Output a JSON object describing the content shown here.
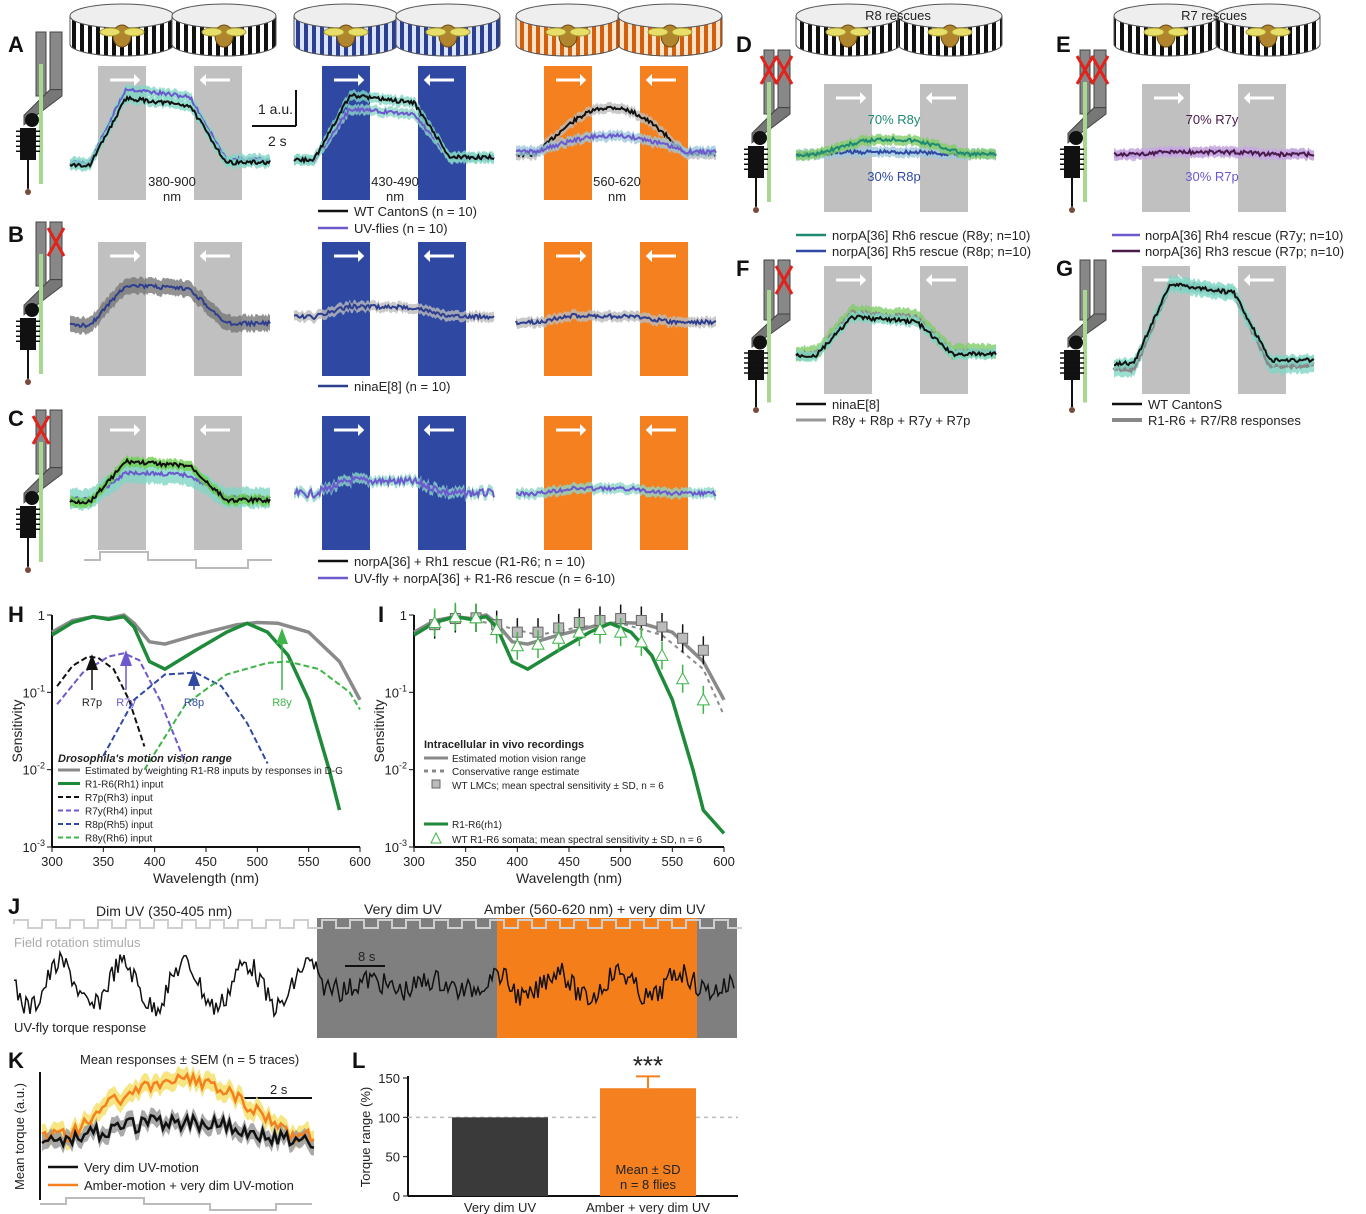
{
  "colors": {
    "grey_band": "#c0c0c0",
    "blue_band": "#2f49a3",
    "orange_band": "#f4801f",
    "wt_black": "#111111",
    "uv_purple": "#6a5acd",
    "rh_green": "#1e8a3a",
    "sem_teal": "#7fd6c4",
    "gray_bg_J": "#7f7f7f",
    "amber_J": "#f47e1a",
    "bar_dark": "#3a3a3a",
    "bar_orange": "#f4801f"
  },
  "icons": [
    "drum-arena-icon",
    "fly-photoreceptor-schematic-icon",
    "right-arrow-icon",
    "left-arrow-icon",
    "red-cross-icon"
  ],
  "panelA": {
    "letter": "A",
    "scale_y": "1 a.u.",
    "scale_x": "2 s",
    "band_labels": [
      "380-900\nnm",
      "430-490\nnm",
      "560-620\nnm"
    ],
    "legend": [
      "WT CantonS (n = 10)",
      "UV-flies (n = 10)"
    ]
  },
  "panelB": {
    "letter": "B",
    "legend": [
      "ninaE[8] (n = 10)"
    ]
  },
  "panelC": {
    "letter": "C",
    "legend": [
      "norpA[36] + Rh1 rescue (R1-R6; n = 10)",
      "UV-fly + norpA[36] + R1-R6 rescue (n = 6-10)"
    ]
  },
  "panelD": {
    "letter": "D",
    "title": "R8 rescues",
    "label_top": "70% R8y",
    "label_bottom": "30% R8p",
    "legend": [
      "norpA[36] Rh6 rescue (R8y; n=10)",
      "norpA[36] Rh5 rescue (R8p; n=10)"
    ]
  },
  "panelE": {
    "letter": "E",
    "title": "R7 rescues",
    "label_top": "70% R7y",
    "label_bottom": "30% R7p",
    "legend": [
      "norpA[36] Rh4 rescue (R7y; n=10)",
      "norpA[36] Rh3 rescue (R7p; n=10)"
    ]
  },
  "panelF": {
    "letter": "F",
    "legend": [
      "ninaE[8]",
      "R8y + R8p + R7y + R7p"
    ]
  },
  "panelG": {
    "letter": "G",
    "legend": [
      "WT CantonS",
      "R1-R6 + R7/R8 responses"
    ]
  },
  "chart_data": [
    {
      "panel": "H",
      "type": "line",
      "xlabel": "Wavelength (nm)",
      "ylabel": "Sensitivity",
      "xlim": [
        300,
        600
      ],
      "ylim": [
        0.001,
        1
      ],
      "yscale": "log",
      "x_ticks": [
        "300",
        "350",
        "400",
        "450",
        "500",
        "550",
        "600"
      ],
      "y_ticks": [
        "1",
        "10^-1",
        "10^-2",
        "10^-3"
      ],
      "peak_labels": [
        "R7p",
        "R7y",
        "R8p",
        "R8y"
      ],
      "legend_title": "Drosophila's motion vision range",
      "series": [
        {
          "name": "Estimated by weighting R1-R8 inputs by responses in D-G",
          "color": "#8a8a8a",
          "x": [
            300,
            320,
            340,
            355,
            370,
            380,
            395,
            410,
            440,
            480,
            500,
            520,
            550,
            580,
            600
          ],
          "y": [
            0.6,
            0.85,
            0.95,
            0.9,
            1.0,
            0.78,
            0.45,
            0.42,
            0.55,
            0.75,
            0.8,
            0.78,
            0.6,
            0.25,
            0.08
          ]
        },
        {
          "name": "R1-R6(Rh1) input",
          "color": "#1e8a3a",
          "x": [
            300,
            320,
            340,
            355,
            370,
            380,
            395,
            410,
            440,
            470,
            490,
            510,
            530,
            550,
            570,
            580
          ],
          "y": [
            0.55,
            0.8,
            0.95,
            0.88,
            0.95,
            0.7,
            0.25,
            0.2,
            0.35,
            0.6,
            0.78,
            0.6,
            0.3,
            0.08,
            0.01,
            0.003
          ]
        },
        {
          "name": "R7p(Rh3) input",
          "color": "#111111",
          "x": [
            305,
            320,
            335,
            345,
            360,
            375,
            390
          ],
          "y": [
            0.12,
            0.22,
            0.29,
            0.28,
            0.2,
            0.08,
            0.02
          ]
        },
        {
          "name": "R7y(Rh4) input",
          "color": "#6a5acd",
          "x": [
            305,
            330,
            355,
            370,
            385,
            405,
            430
          ],
          "y": [
            0.07,
            0.18,
            0.29,
            0.32,
            0.26,
            0.08,
            0.012
          ]
        },
        {
          "name": "R8p(Rh5) input",
          "color": "#2f49a3",
          "x": [
            350,
            380,
            410,
            440,
            465,
            490,
            510
          ],
          "y": [
            0.015,
            0.08,
            0.17,
            0.18,
            0.12,
            0.04,
            0.012
          ]
        },
        {
          "name": "R8y(Rh6) input",
          "color": "#3fb549",
          "x": [
            390,
            430,
            470,
            510,
            530,
            560,
            590,
            600
          ],
          "y": [
            0.01,
            0.07,
            0.17,
            0.24,
            0.25,
            0.2,
            0.1,
            0.06
          ]
        }
      ]
    },
    {
      "panel": "I",
      "type": "line",
      "xlabel": "Wavelength (nm)",
      "ylabel": "Sensitivity",
      "xlim": [
        300,
        600
      ],
      "ylim": [
        0.001,
        1
      ],
      "yscale": "log",
      "x_ticks": [
        "300",
        "350",
        "400",
        "450",
        "500",
        "550",
        "600"
      ],
      "y_ticks": [
        "1",
        "10^-1",
        "10^-2",
        "10^-3"
      ],
      "legend_title": "Intracellular in vivo recordings",
      "series": [
        {
          "name": "Estimated motion vision range",
          "color": "#8a8a8a",
          "x": [
            300,
            320,
            340,
            355,
            370,
            380,
            395,
            410,
            440,
            480,
            500,
            520,
            550,
            580,
            600
          ],
          "y": [
            0.6,
            0.85,
            0.95,
            0.9,
            1.0,
            0.78,
            0.45,
            0.42,
            0.55,
            0.75,
            0.8,
            0.78,
            0.6,
            0.25,
            0.08
          ]
        },
        {
          "name": "Conservative range estimate",
          "color": "#8a8a8a",
          "x": [
            300,
            340,
            380,
            420,
            460,
            500,
            540,
            580,
            600
          ],
          "y": [
            0.6,
            0.95,
            0.75,
            0.55,
            0.7,
            0.78,
            0.55,
            0.2,
            0.05
          ]
        },
        {
          "name": "WT LMCs; mean spectral sensitivity ± SD, n = 6",
          "color": "#8a8a8a",
          "x": [
            320,
            340,
            360,
            380,
            400,
            420,
            440,
            460,
            480,
            500,
            520,
            540,
            560,
            580
          ],
          "y": [
            0.75,
            0.9,
            0.92,
            0.75,
            0.6,
            0.6,
            0.68,
            0.8,
            0.85,
            0.9,
            0.85,
            0.7,
            0.5,
            0.35
          ]
        },
        {
          "name": "R1-R6(rh1)",
          "color": "#1e8a3a",
          "x": [
            300,
            320,
            340,
            355,
            370,
            380,
            395,
            410,
            440,
            470,
            490,
            510,
            530,
            550,
            570,
            580,
            600
          ],
          "y": [
            0.55,
            0.8,
            0.95,
            0.88,
            0.95,
            0.7,
            0.25,
            0.2,
            0.35,
            0.6,
            0.78,
            0.6,
            0.3,
            0.08,
            0.01,
            0.003,
            0.0015
          ]
        },
        {
          "name": "WT R1-R6 somata; mean spectral sensitivity ± SD, n = 6",
          "color": "#3fb549",
          "x": [
            320,
            340,
            360,
            380,
            400,
            420,
            440,
            460,
            480,
            500,
            520,
            540,
            560,
            580
          ],
          "y": [
            0.8,
            0.95,
            0.92,
            0.65,
            0.4,
            0.42,
            0.5,
            0.6,
            0.65,
            0.6,
            0.45,
            0.3,
            0.15,
            0.08
          ]
        }
      ]
    },
    {
      "panel": "L",
      "type": "bar",
      "categories": [
        "Very dim UV",
        "Amber + very dim UV"
      ],
      "values": [
        100,
        137
      ],
      "errors": [
        0,
        15
      ],
      "ylabel": "Torque range (%)",
      "ylim": [
        0,
        150
      ],
      "y_ticks": [
        "0",
        "50",
        "100",
        "150"
      ],
      "significance": "***",
      "annotation": "Mean ± SD\nn = 8 flies"
    }
  ],
  "panelH": {
    "letter": "H"
  },
  "panelI": {
    "letter": "I"
  },
  "panelJ": {
    "letter": "J",
    "label1": "Dim UV (350-405 nm)",
    "label2": "Very dim UV",
    "label3": "Amber (560-620 nm) + very dim UV",
    "stim_label": "Field rotation stimulus",
    "scale": "8 s",
    "response_label": "UV-fly torque response"
  },
  "panelK": {
    "letter": "K",
    "title": "Mean responses ± SEM (n = 5 traces)",
    "scale": "2 s",
    "ylabel": "Mean torque (a.u.)",
    "legend": [
      "Very dim UV-motion",
      "Amber-motion + very dim UV-motion"
    ]
  },
  "panelL": {
    "letter": "L"
  }
}
